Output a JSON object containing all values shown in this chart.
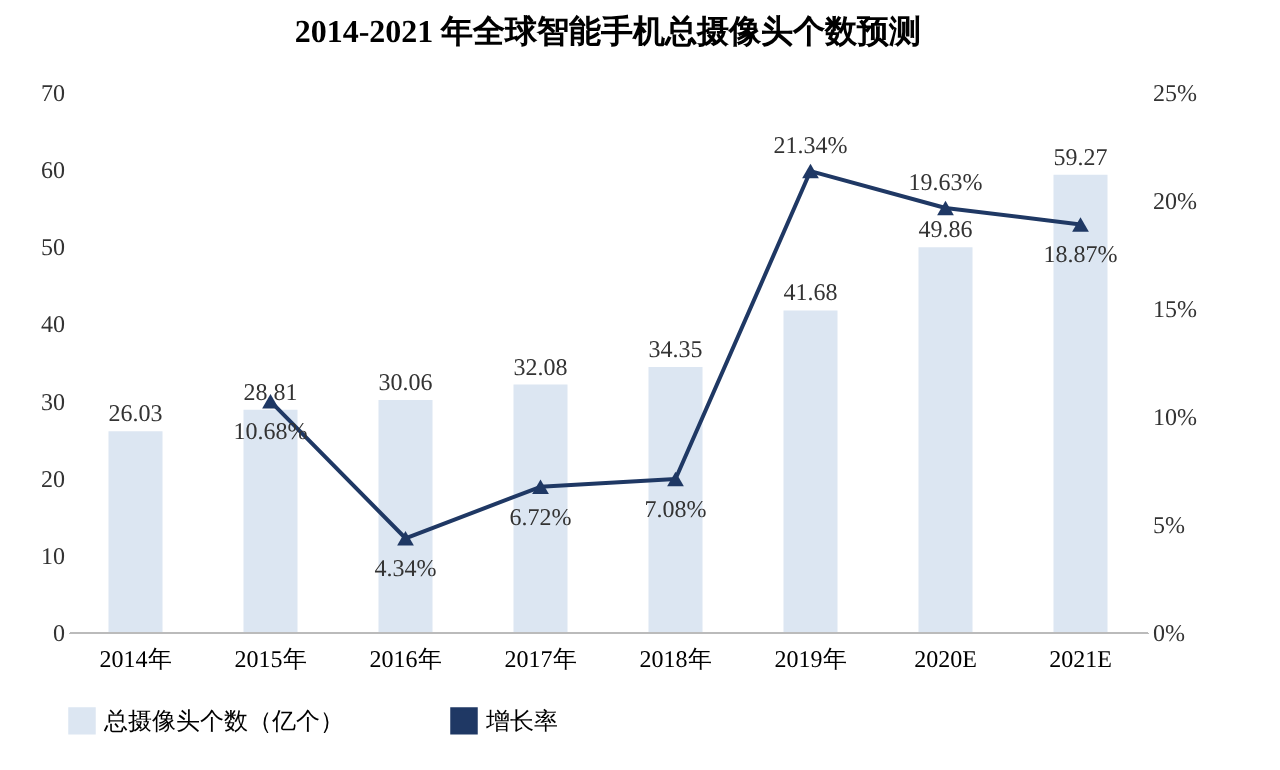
{
  "chart_data": {
    "type": "bar",
    "title": "2014-2021 年全球智能手机总摄像头个数预测",
    "categories": [
      "2014年",
      "2015年",
      "2016年",
      "2017年",
      "2018年",
      "2019年",
      "2020E",
      "2021E"
    ],
    "series": [
      {
        "name": "总摄像头个数（亿个）",
        "color": "#dce6f2",
        "values": [
          26.03,
          28.81,
          30.06,
          32.08,
          34.35,
          41.68,
          49.86,
          59.27
        ],
        "value_labels": [
          "26.03",
          "28.81",
          "30.06",
          "32.08",
          "34.35",
          "41.68",
          "49.86",
          "59.27"
        ]
      },
      {
        "name": "增长率",
        "type": "line",
        "axis": "y2",
        "color": "#1f3864",
        "marker": "triangle",
        "values": [
          null,
          10.68,
          4.34,
          6.72,
          7.08,
          21.34,
          19.63,
          18.87
        ],
        "value_labels": [
          null,
          "10.68%",
          "4.34%",
          "6.72%",
          "7.08%",
          "21.34%",
          "19.63%",
          "18.87%"
        ]
      }
    ],
    "ylim": [
      0,
      70
    ],
    "yticks": [
      0,
      10,
      20,
      30,
      40,
      50,
      60,
      70
    ],
    "y2lim": [
      0,
      25
    ],
    "y2ticks": [
      {
        "value": 0,
        "label": "0%"
      },
      {
        "value": 5,
        "label": "5%"
      },
      {
        "value": 10,
        "label": "10%"
      },
      {
        "value": 15,
        "label": "15%"
      },
      {
        "value": 20,
        "label": "20%"
      },
      {
        "value": 25,
        "label": "25%"
      }
    ],
    "grid": false,
    "legend": "bottom"
  }
}
